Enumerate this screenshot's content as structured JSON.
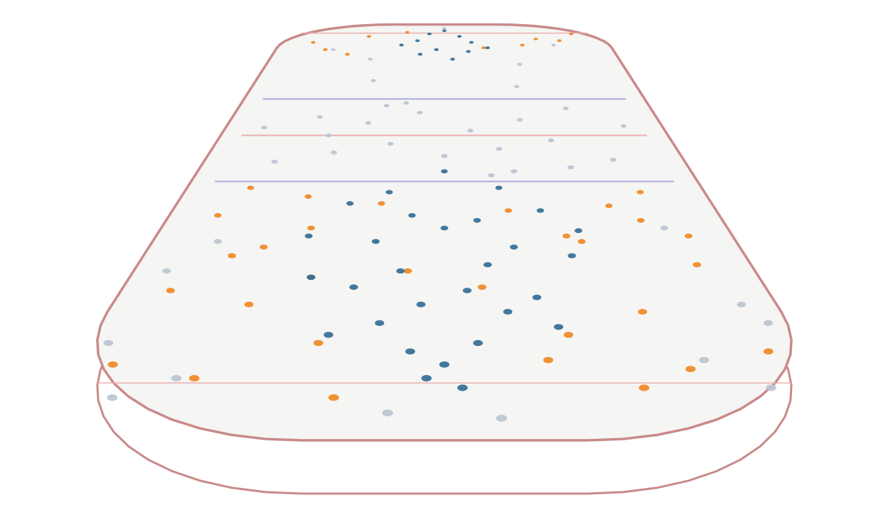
{
  "chart_data": {
    "type": "scatter",
    "xlim": [
      -42.5,
      42.5
    ],
    "ylim": [
      -100,
      100
    ],
    "series": [
      {
        "color": "#b9c3d1",
        "x": [
          -30,
          -20,
          -10,
          0,
          10,
          20,
          30,
          -35,
          -25,
          -15,
          -5,
          5,
          15,
          25,
          35,
          -38,
          38,
          -30,
          30,
          -12,
          12,
          -22,
          22,
          -8,
          8,
          -33,
          33,
          -18,
          18,
          0,
          -40,
          40,
          -36,
          36,
          -28,
          28,
          -6,
          6,
          -16,
          16
        ],
        "values": [
          -15,
          -10,
          -5,
          -12,
          -8,
          -3,
          -14,
          5,
          12,
          8,
          15,
          3,
          10,
          18,
          6,
          -60,
          -70,
          -88,
          -84,
          20,
          -20,
          0,
          -18,
          22,
          -22,
          -50,
          -45,
          60,
          55,
          95,
          -80,
          -75,
          -92,
          -90,
          70,
          75,
          -95,
          -96,
          40,
          35
        ]
      },
      {
        "color": "#f0861f",
        "x": [
          -35,
          -30,
          -25,
          -20,
          -15,
          -10,
          -5,
          5,
          10,
          15,
          20,
          25,
          30,
          35,
          -38,
          38,
          -32,
          32,
          -28,
          28,
          -22,
          22,
          -18,
          18,
          -12,
          12,
          -36,
          36,
          -26,
          26,
          -30,
          30,
          -20,
          20,
          -10,
          10,
          -34,
          34,
          -24,
          24
        ],
        "values": [
          -40,
          -55,
          -70,
          -45,
          -80,
          -35,
          -60,
          -65,
          -38,
          -78,
          -50,
          -72,
          -42,
          -58,
          -85,
          -82,
          -28,
          -30,
          -88,
          -86,
          -32,
          -90,
          -62,
          -48,
          -92,
          -84,
          -66,
          -48,
          -52,
          -36,
          70,
          80,
          85,
          75,
          90,
          72,
          78,
          88,
          65,
          82
        ]
      },
      {
        "color": "#2f6a94",
        "x": [
          -8,
          -4,
          0,
          4,
          8,
          -12,
          12,
          -6,
          6,
          -2,
          2,
          -10,
          10,
          -14,
          14,
          -18,
          18,
          -3,
          3,
          0,
          -5,
          5,
          -15,
          15,
          -9,
          9,
          -20,
          20,
          0,
          -7,
          7,
          -4,
          4,
          -11,
          11,
          0,
          -6,
          6,
          -2,
          2
        ],
        "values": [
          -75,
          -82,
          -85,
          -80,
          -72,
          -65,
          -68,
          -60,
          -58,
          -88,
          -90,
          -50,
          -52,
          -78,
          -76,
          -62,
          -55,
          -70,
          -66,
          -45,
          -40,
          -42,
          -35,
          -38,
          -30,
          -28,
          -48,
          -46,
          -20,
          80,
          78,
          88,
          85,
          75,
          72,
          92,
          65,
          68,
          70,
          60
        ]
      }
    ]
  }
}
